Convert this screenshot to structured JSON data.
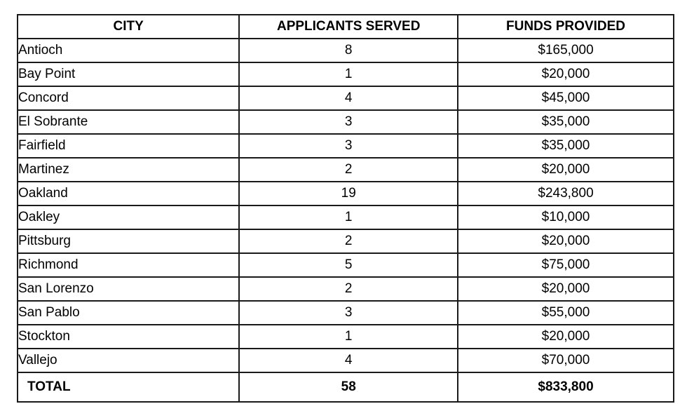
{
  "table": {
    "headers": {
      "city": "CITY",
      "applicants": "APPLICANTS SERVED",
      "funds": "FUNDS PROVIDED"
    },
    "rows": [
      {
        "city": "Antioch",
        "applicants": "8",
        "funds": "$165,000"
      },
      {
        "city": "Bay Point",
        "applicants": "1",
        "funds": "$20,000"
      },
      {
        "city": "Concord",
        "applicants": "4",
        "funds": "$45,000"
      },
      {
        "city": "El Sobrante",
        "applicants": "3",
        "funds": "$35,000"
      },
      {
        "city": "Fairfield",
        "applicants": "3",
        "funds": "$35,000"
      },
      {
        "city": "Martinez",
        "applicants": "2",
        "funds": "$20,000"
      },
      {
        "city": "Oakland",
        "applicants": "19",
        "funds": "$243,800"
      },
      {
        "city": "Oakley",
        "applicants": "1",
        "funds": "$10,000"
      },
      {
        "city": "Pittsburg",
        "applicants": "2",
        "funds": "$20,000"
      },
      {
        "city": "Richmond",
        "applicants": "5",
        "funds": "$75,000"
      },
      {
        "city": "San Lorenzo",
        "applicants": "2",
        "funds": "$20,000"
      },
      {
        "city": "San Pablo",
        "applicants": "3",
        "funds": "$55,000"
      },
      {
        "city": "Stockton",
        "applicants": "1",
        "funds": "$20,000"
      },
      {
        "city": "Vallejo",
        "applicants": "4",
        "funds": "$70,000"
      }
    ],
    "total": {
      "label": "TOTAL",
      "applicants": "58",
      "funds": "$833,800"
    }
  },
  "colors": {
    "border": "#1a1a1a",
    "text": "#000000",
    "background": "#ffffff"
  },
  "chart_data": {
    "type": "table",
    "title": "",
    "categories": [
      "Antioch",
      "Bay Point",
      "Concord",
      "El Sobrante",
      "Fairfield",
      "Martinez",
      "Oakland",
      "Oakley",
      "Pittsburg",
      "Richmond",
      "San Lorenzo",
      "San Pablo",
      "Stockton",
      "Vallejo"
    ],
    "series": [
      {
        "name": "APPLICANTS SERVED",
        "values": [
          8,
          1,
          4,
          3,
          3,
          2,
          19,
          1,
          2,
          5,
          2,
          3,
          1,
          4
        ]
      },
      {
        "name": "FUNDS PROVIDED",
        "values": [
          165000,
          20000,
          45000,
          35000,
          35000,
          20000,
          243800,
          10000,
          20000,
          75000,
          20000,
          55000,
          20000,
          70000
        ]
      }
    ],
    "totals": {
      "APPLICANTS SERVED": 58,
      "FUNDS PROVIDED": 833800
    }
  }
}
